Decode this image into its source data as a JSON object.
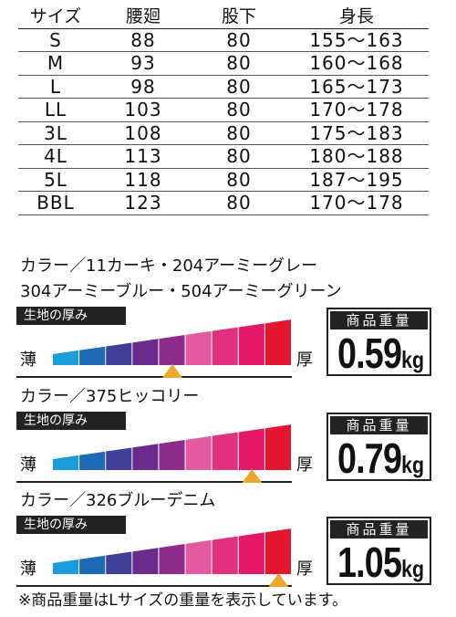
{
  "size_table": {
    "headers": [
      "サイズ",
      "腰廻",
      "股下",
      "身長"
    ],
    "rows": [
      [
        "S",
        "88",
        "80",
        "155～163"
      ],
      [
        "M",
        "93",
        "80",
        "160～168"
      ],
      [
        "L",
        "98",
        "80",
        "165～173"
      ],
      [
        "LL",
        "103",
        "80",
        "170～178"
      ],
      [
        "3L",
        "108",
        "80",
        "175～183"
      ],
      [
        "4L",
        "113",
        "80",
        "180～188"
      ],
      [
        "5L",
        "118",
        "80",
        "187～195"
      ],
      [
        "BBL",
        "123",
        "80",
        "170～178"
      ]
    ]
  },
  "meter_colors": [
    "#1b9ddb",
    "#1f6ab7",
    "#3f3f98",
    "#6a2b8c",
    "#8e2c8c",
    "#e45aa0",
    "#e0307e",
    "#e41968",
    "#e3162d"
  ],
  "pointer_color": "#f0a52c",
  "products": [
    {
      "color_lines": [
        "カラー／11カーキ・204アーミーグレー",
        "304アーミーブルー・504アーミーグリーン"
      ],
      "thickness_label": "生地の厚み",
      "thin": "薄",
      "thick": "厚",
      "thickness_level": 5,
      "weight_label": "商品重量",
      "weight_value": "0.59",
      "weight_unit": "kg"
    },
    {
      "color_lines": [
        "カラー／375ヒッコリー"
      ],
      "thickness_label": "生地の厚み",
      "thin": "薄",
      "thick": "厚",
      "thickness_level": 8,
      "weight_label": "商品重量",
      "weight_value": "0.79",
      "weight_unit": "kg"
    },
    {
      "color_lines": [
        "カラー／326ブルーデニム"
      ],
      "thickness_label": "生地の厚み",
      "thin": "薄",
      "thick": "厚",
      "thickness_level": 9,
      "weight_label": "商品重量",
      "weight_value": "1.05",
      "weight_unit": "kg"
    }
  ],
  "footnote": "※商品重量はLサイズの重量を表示しています。"
}
